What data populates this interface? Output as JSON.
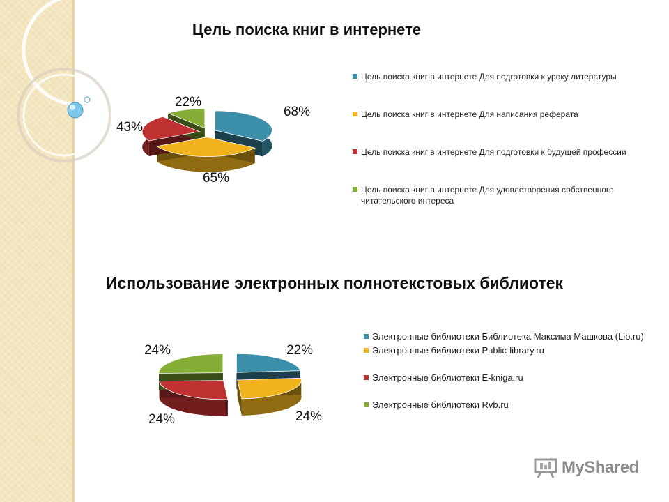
{
  "slide": {
    "watermark": "MyShared",
    "colors": {
      "blue": "#3b8fa8",
      "yellow": "#f0b31c",
      "red": "#c03232",
      "green": "#86ad35"
    }
  },
  "chart_data": [
    {
      "type": "pie",
      "title": "Цель поиска книг в интернете",
      "legend_position": "right",
      "series": [
        {
          "name": "Цель поиска книг в интернете Для подготовки к уроку литературы",
          "value": 68,
          "label": "68%",
          "color": "#3b8fa8"
        },
        {
          "name": "Цель поиска книг в интернете Для написания реферата",
          "value": 65,
          "label": "65%",
          "color": "#f0b31c"
        },
        {
          "name": "Цель поиска книг в интернете Для подготовки к будущей профессии",
          "value": 43,
          "label": "43%",
          "color": "#c03232"
        },
        {
          "name": "Цель поиска книг в интернете Для удовлетворения собственного читательского интереса",
          "value": 22,
          "label": "22%",
          "color": "#86ad35"
        }
      ]
    },
    {
      "type": "pie",
      "title": "Использование электронных полнотекстовых библиотек",
      "legend_position": "right",
      "series": [
        {
          "name": "Электронные библиотеки Библиотека Максима Машкова (Lib.ru)",
          "value": 22,
          "label": "22%",
          "color": "#3b8fa8"
        },
        {
          "name": "Электронные библиотеки Public-library.ru",
          "value": 24,
          "label": "24%",
          "color": "#f0b31c"
        },
        {
          "name": "Электронные библиотеки E-kniga.ru",
          "value": 24,
          "label": "24%",
          "color": "#c03232"
        },
        {
          "name": "Электронные библиотеки Rvb.ru",
          "value": 24,
          "label": "24%",
          "color": "#86ad35"
        }
      ]
    }
  ]
}
